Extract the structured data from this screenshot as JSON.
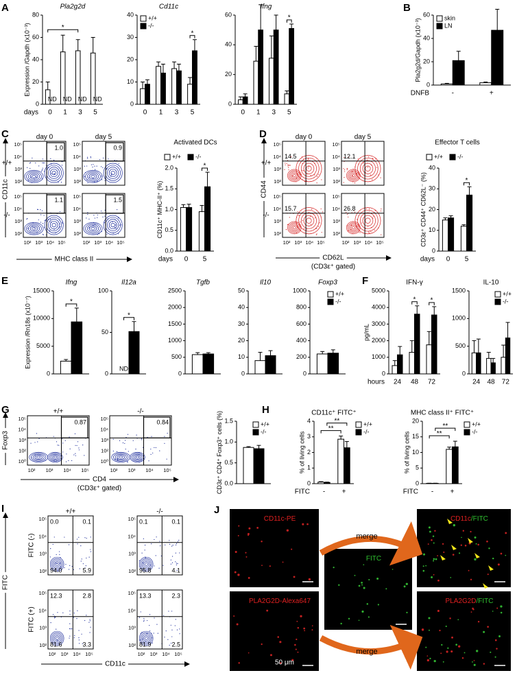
{
  "panel_labels": [
    "A",
    "B",
    "C",
    "D",
    "E",
    "F",
    "G",
    "H",
    "I",
    "J"
  ],
  "chart_data": [
    {
      "type": "bar",
      "title": "Pla2g2d",
      "ylabel": "Expression /Gapdh (x10⁻³)",
      "xlabel": "days",
      "categories": [
        "0",
        "1",
        "3",
        "5"
      ],
      "series": [
        {
          "color": "#ffffff",
          "values": [
            13,
            47,
            48,
            46
          ],
          "errors": [
            7,
            15,
            10,
            14
          ]
        },
        {
          "color": "#000000",
          "values": [
            null,
            null,
            null,
            null
          ],
          "value_labels": [
            "ND",
            "ND",
            "ND",
            "ND"
          ]
        }
      ],
      "ylim": [
        0,
        80
      ],
      "yticks": [
        0,
        20,
        40,
        60,
        80
      ],
      "significance": [
        {
          "label": "*",
          "categories": [
            "0",
            "3"
          ]
        }
      ]
    },
    {
      "type": "bar",
      "title": "Cd11c",
      "categories": [
        "0",
        "1",
        "3",
        "5"
      ],
      "series": [
        {
          "name": "+/+",
          "color": "#ffffff",
          "values": [
            7,
            17,
            16,
            9
          ],
          "errors": [
            3,
            2,
            3,
            3
          ]
        },
        {
          "name": "-/-",
          "color": "#000000",
          "values": [
            9,
            14,
            15,
            24
          ],
          "errors": [
            2,
            4,
            3,
            5
          ]
        }
      ],
      "ylim": [
        0,
        40
      ],
      "yticks": [
        0,
        10,
        20,
        30,
        40
      ],
      "legend": "upper left",
      "significance": [
        {
          "label": "*",
          "categories": [
            "5"
          ]
        }
      ]
    },
    {
      "type": "bar",
      "title": "Ifng",
      "categories": [
        "0",
        "1",
        "3",
        "5"
      ],
      "series": [
        {
          "color": "#ffffff",
          "values": [
            3,
            29,
            31,
            7
          ],
          "errors": [
            2,
            10,
            15,
            2
          ]
        },
        {
          "color": "#000000",
          "values": [
            5,
            50,
            50,
            51
          ],
          "errors": [
            2,
            17,
            10,
            3
          ]
        }
      ],
      "ylim": [
        0,
        60
      ],
      "yticks": [
        0,
        20,
        40,
        60
      ],
      "significance": [
        {
          "label": "*",
          "categories": [
            "5"
          ]
        }
      ]
    },
    {
      "type": "bar",
      "ylabel": "Pla2g2d/Gapdh (x10⁻³)",
      "xlabel": "DNFB",
      "categories": [
        "-",
        "+"
      ],
      "series": [
        {
          "name": "skin",
          "color": "#ffffff",
          "values": [
            1,
            2
          ],
          "errors": [
            0.5,
            0.6
          ]
        },
        {
          "name": "LN",
          "color": "#000000",
          "values": [
            21,
            47
          ],
          "errors": [
            8,
            18
          ]
        }
      ],
      "ylim": [
        0,
        60
      ],
      "yticks": [
        0,
        20,
        40,
        60
      ],
      "legend": "upper left"
    },
    {
      "type": "bar",
      "title": "Activated DCs",
      "ylabel": "CD11c⁺ MHC-II⁺ (%)",
      "xlabel": "days",
      "categories": [
        "0",
        "5"
      ],
      "series": [
        {
          "name": "+/+",
          "color": "#ffffff",
          "values": [
            1.05,
            0.95
          ],
          "errors": [
            0.07,
            0.15
          ]
        },
        {
          "name": "-/-",
          "color": "#000000",
          "values": [
            1.05,
            1.55
          ],
          "errors": [
            0.08,
            0.35
          ]
        }
      ],
      "ylim": [
        0,
        2
      ],
      "yticks": [
        {
          "value": 0,
          "label": "0.0"
        },
        {
          "value": 0.5,
          "label": "0.5"
        },
        {
          "value": 1,
          "label": "1.0"
        },
        {
          "value": 1.5,
          "label": "1.5"
        },
        {
          "value": 2,
          "label": "2.0"
        }
      ],
      "legend": "top",
      "significance": [
        {
          "label": "*",
          "categories": [
            "5"
          ]
        }
      ]
    },
    {
      "type": "bar",
      "title": "Effector T cells",
      "ylabel": "CD3ε⁺ CD44⁺ CD62L⁻ (%)",
      "xlabel": "days",
      "categories": [
        "0",
        "5"
      ],
      "series": [
        {
          "name": "+/+",
          "color": "#ffffff",
          "values": [
            15,
            12
          ],
          "errors": [
            1,
            0.7
          ]
        },
        {
          "name": "-/-",
          "color": "#000000",
          "values": [
            16,
            27
          ],
          "errors": [
            1,
            4
          ]
        }
      ],
      "ylim": [
        0,
        40
      ],
      "yticks": [
        0,
        10,
        20,
        30,
        40
      ],
      "legend": "top",
      "significance": [
        {
          "label": "*",
          "categories": [
            "5"
          ]
        }
      ]
    },
    {
      "type": "bar",
      "title": "Ifng",
      "ylabel": "Expression /Rn18s (x10⁻⁷)",
      "categories": [
        null
      ],
      "series": [
        {
          "color": "#ffffff",
          "values": [
            2300
          ],
          "errors": [
            300
          ]
        },
        {
          "color": "#000000",
          "values": [
            9400
          ],
          "errors": [
            2500
          ]
        }
      ],
      "ylim": [
        0,
        15000
      ],
      "yticks": [
        0,
        5000,
        10000,
        15000
      ],
      "significance": [
        {
          "label": "*",
          "categories": [
            null
          ]
        }
      ]
    },
    {
      "type": "bar",
      "title": "Il12a",
      "categories": [
        null
      ],
      "series": [
        {
          "color": "#ffffff",
          "values": [
            null
          ],
          "value_labels": [
            "ND"
          ]
        },
        {
          "color": "#000000",
          "values": [
            51
          ],
          "errors": [
            12
          ]
        }
      ],
      "ylim": [
        0,
        100
      ],
      "yticks": [
        0,
        50,
        100
      ],
      "significance": [
        {
          "label": "*",
          "categories": [
            null
          ]
        }
      ]
    },
    {
      "type": "bar",
      "title": "Tgfb",
      "categories": [
        null
      ],
      "series": [
        {
          "color": "#ffffff",
          "values": [
            580
          ],
          "errors": [
            60
          ]
        },
        {
          "color": "#000000",
          "values": [
            600
          ],
          "errors": [
            40
          ]
        }
      ],
      "ylim": [
        0,
        2500
      ],
      "yticks": [
        0,
        500,
        1000,
        1500,
        2000,
        2500
      ]
    },
    {
      "type": "bar",
      "title": "Il10",
      "categories": [
        null
      ],
      "series": [
        {
          "color": "#ffffff",
          "values": [
            8
          ],
          "errors": [
            5
          ]
        },
        {
          "color": "#000000",
          "values": [
            11
          ],
          "errors": [
            3
          ]
        }
      ],
      "ylim": [
        0,
        50
      ],
      "yticks": [
        0,
        10,
        20,
        30,
        40,
        50
      ]
    },
    {
      "type": "bar",
      "title": "Foxp3",
      "categories": [
        null
      ],
      "series": [
        {
          "name": "+/+",
          "color": "#ffffff",
          "values": [
            240
          ],
          "errors": [
            30
          ]
        },
        {
          "name": "-/-",
          "color": "#000000",
          "values": [
            250
          ],
          "errors": [
            40
          ]
        }
      ],
      "ylim": [
        0,
        1000
      ],
      "yticks": [
        0,
        200,
        400,
        600,
        800,
        1000
      ],
      "legend": "upper right"
    },
    {
      "type": "bar",
      "title": "IFN-γ",
      "ylabel": "pg/mL",
      "xlabel": "hours",
      "categories": [
        "24",
        "48",
        "72"
      ],
      "series": [
        {
          "color": "#ffffff",
          "values": [
            500,
            1300,
            1750
          ],
          "errors": [
            300,
            700,
            800
          ]
        },
        {
          "color": "#000000",
          "values": [
            1150,
            3600,
            3550
          ],
          "errors": [
            500,
            500,
            500
          ]
        }
      ],
      "ylim": [
        0,
        5000
      ],
      "yticks": [
        0,
        1000,
        2000,
        3000,
        4000,
        5000
      ],
      "significance": [
        {
          "label": "*",
          "categories": [
            "48"
          ]
        },
        {
          "label": "*",
          "categories": [
            "72"
          ]
        }
      ]
    },
    {
      "type": "bar",
      "title": "IL-10",
      "categories": [
        "24",
        "48",
        "72"
      ],
      "series": [
        {
          "name": "+/+",
          "color": "#ffffff",
          "values": [
            380,
            280,
            300
          ],
          "errors": [
            220,
            110,
            220
          ]
        },
        {
          "name": "-/-",
          "color": "#000000",
          "values": [
            380,
            200,
            650
          ],
          "errors": [
            250,
            80,
            280
          ]
        }
      ],
      "ylim": [
        0,
        1500
      ],
      "yticks": [
        0,
        500,
        1000,
        1500
      ],
      "legend": "upper right"
    },
    {
      "type": "bar",
      "ylabel": "CD3ε⁺ CD4⁺ Foxp3⁺ cells (%)",
      "categories": [
        null
      ],
      "series": [
        {
          "name": "+/+",
          "color": "#ffffff",
          "values": [
            0.87
          ],
          "errors": [
            0.02
          ]
        },
        {
          "name": "-/-",
          "color": "#000000",
          "values": [
            0.84
          ],
          "errors": [
            0.08
          ]
        }
      ],
      "ylim": [
        0,
        1.5
      ],
      "yticks": [
        {
          "value": 0,
          "label": "0.0"
        },
        {
          "value": 0.5,
          "label": "0.5"
        },
        {
          "value": 1,
          "label": "1.0"
        },
        {
          "value": 1.5,
          "label": "1.5"
        }
      ],
      "legend": "upper right"
    },
    {
      "type": "bar",
      "title": "CD11c⁺ FITC⁺",
      "ylabel": "% of living cells",
      "xlabel": "FITC",
      "categories": [
        "-",
        "+"
      ],
      "series": [
        {
          "name": "+/+",
          "color": "#ffffff",
          "values": [
            0.1,
            2.85
          ],
          "errors": [
            0.03,
            0.2
          ]
        },
        {
          "name": "-/-",
          "color": "#000000",
          "values": [
            0.08,
            2.3
          ],
          "errors": [
            0.02,
            0.4
          ]
        }
      ],
      "ylim": [
        0,
        4
      ],
      "yticks": [
        0,
        1,
        2,
        3,
        4
      ],
      "legend": "right",
      "significance": [
        {
          "label": "**",
          "categories": [
            "-",
            "+"
          ]
        },
        {
          "label": "**",
          "categories": [
            "-",
            "+"
          ]
        }
      ]
    },
    {
      "type": "bar",
      "title": "MHC class II⁺ FITC⁺",
      "ylabel": "% of living cells",
      "xlabel": "FITC",
      "categories": [
        "-",
        "+"
      ],
      "series": [
        {
          "name": "+/+",
          "color": "#ffffff",
          "values": [
            0.1,
            11
          ],
          "errors": [
            0.05,
            0.7
          ]
        },
        {
          "name": "-/-",
          "color": "#000000",
          "values": [
            0.1,
            11.8
          ],
          "errors": [
            0.05,
            1.8
          ]
        }
      ],
      "ylim": [
        0,
        20
      ],
      "yticks": [
        0,
        5,
        10,
        15,
        20
      ],
      "legend": "right",
      "significance": [
        {
          "label": "**",
          "categories": [
            "-",
            "+"
          ]
        },
        {
          "label": "**",
          "categories": [
            "-",
            "+"
          ]
        }
      ]
    }
  ],
  "flow_panels": [
    {
      "columns": [
        "day 0",
        "day 5"
      ],
      "rows": [
        "+/+",
        "-/-"
      ],
      "y_label": "CD11c",
      "x_label": "MHC class II",
      "xticks": [
        "10²",
        "10³",
        "10⁴",
        "10⁵"
      ],
      "yticks": [
        "10⁵",
        "10⁴",
        "10³",
        "10²"
      ],
      "gates": [
        [
          "1.0",
          "0.9"
        ],
        [
          "1.1",
          "1.5"
        ]
      ],
      "gate_corner": "upper right",
      "color": "#1a2a9a"
    },
    {
      "columns": [
        "day 0",
        "day 5"
      ],
      "rows": [
        "+/+",
        "-/-"
      ],
      "y_label": "CD44",
      "x_label": "CD62L",
      "x_note": "(CD3ε⁺ gated)",
      "xticks": [
        "10²",
        "10³",
        "10⁴",
        "10⁵"
      ],
      "yticks": [
        "10⁵",
        "10⁴",
        "10³",
        "10²"
      ],
      "gates": [
        [
          "14.5",
          "12.1"
        ],
        [
          "15.7",
          "26.8"
        ]
      ],
      "gate_corner": "upper left",
      "color": "#d42020"
    },
    {
      "columns": [
        "+/+",
        "-/-"
      ],
      "rows": [
        null
      ],
      "y_label": "Foxp3",
      "x_label": "CD4",
      "x_note": "(CD3ε⁺ gated)",
      "xticks": [
        "10²",
        "10³",
        "10⁴",
        "10⁵"
      ],
      "yticks": [
        "10⁵",
        "10⁴",
        "10³",
        "10²",
        "10⁰"
      ],
      "gates": [
        [
          "0.87",
          "0.84"
        ]
      ],
      "gate_corner": "upper right",
      "color": "#1a2a9a"
    },
    {
      "columns": [
        "+/+",
        "-/-"
      ],
      "rows": [
        "FITC (-)",
        "FITC (+)"
      ],
      "y_label": "FITC",
      "x_label": "CD11c",
      "xticks": [
        "10²",
        "10³",
        "10⁴",
        "10⁵"
      ],
      "yticks": [
        "10⁵",
        "10⁴",
        "10³",
        "10²"
      ],
      "quadrants": [
        [
          [
            "0.0",
            "0.1",
            "94.0",
            "5.9"
          ],
          [
            "0.1",
            "0.1",
            "95.8",
            "4.1"
          ]
        ],
        [
          [
            "12.3",
            "2.8",
            "81.6",
            "3.3"
          ],
          [
            "13.3",
            "2.3",
            "81.9",
            "2.5"
          ]
        ]
      ],
      "color": "#1a2a9a"
    }
  ],
  "micrographs": {
    "panels": [
      {
        "label": [
          {
            "text": "CD11c-PE",
            "color": "#e02020"
          }
        ]
      },
      {
        "label": [
          {
            "text": "FITC",
            "color": "#30c030"
          }
        ]
      },
      {
        "label": [
          {
            "text": "CD11c",
            "color": "#e02020"
          },
          {
            "text": "/FITC",
            "color": "#30c030"
          }
        ]
      },
      {
        "label": [
          {
            "text": "PLA2G2D-Alexa647",
            "color": "#e02020"
          }
        ]
      },
      {
        "label": [
          {
            "text": "PLA2G2D",
            "color": "#e02020"
          },
          {
            "text": "/FITC",
            "color": "#30c030"
          }
        ]
      }
    ],
    "arrows": [
      "merge",
      "merge"
    ],
    "scale_bar": "50 μm"
  }
}
